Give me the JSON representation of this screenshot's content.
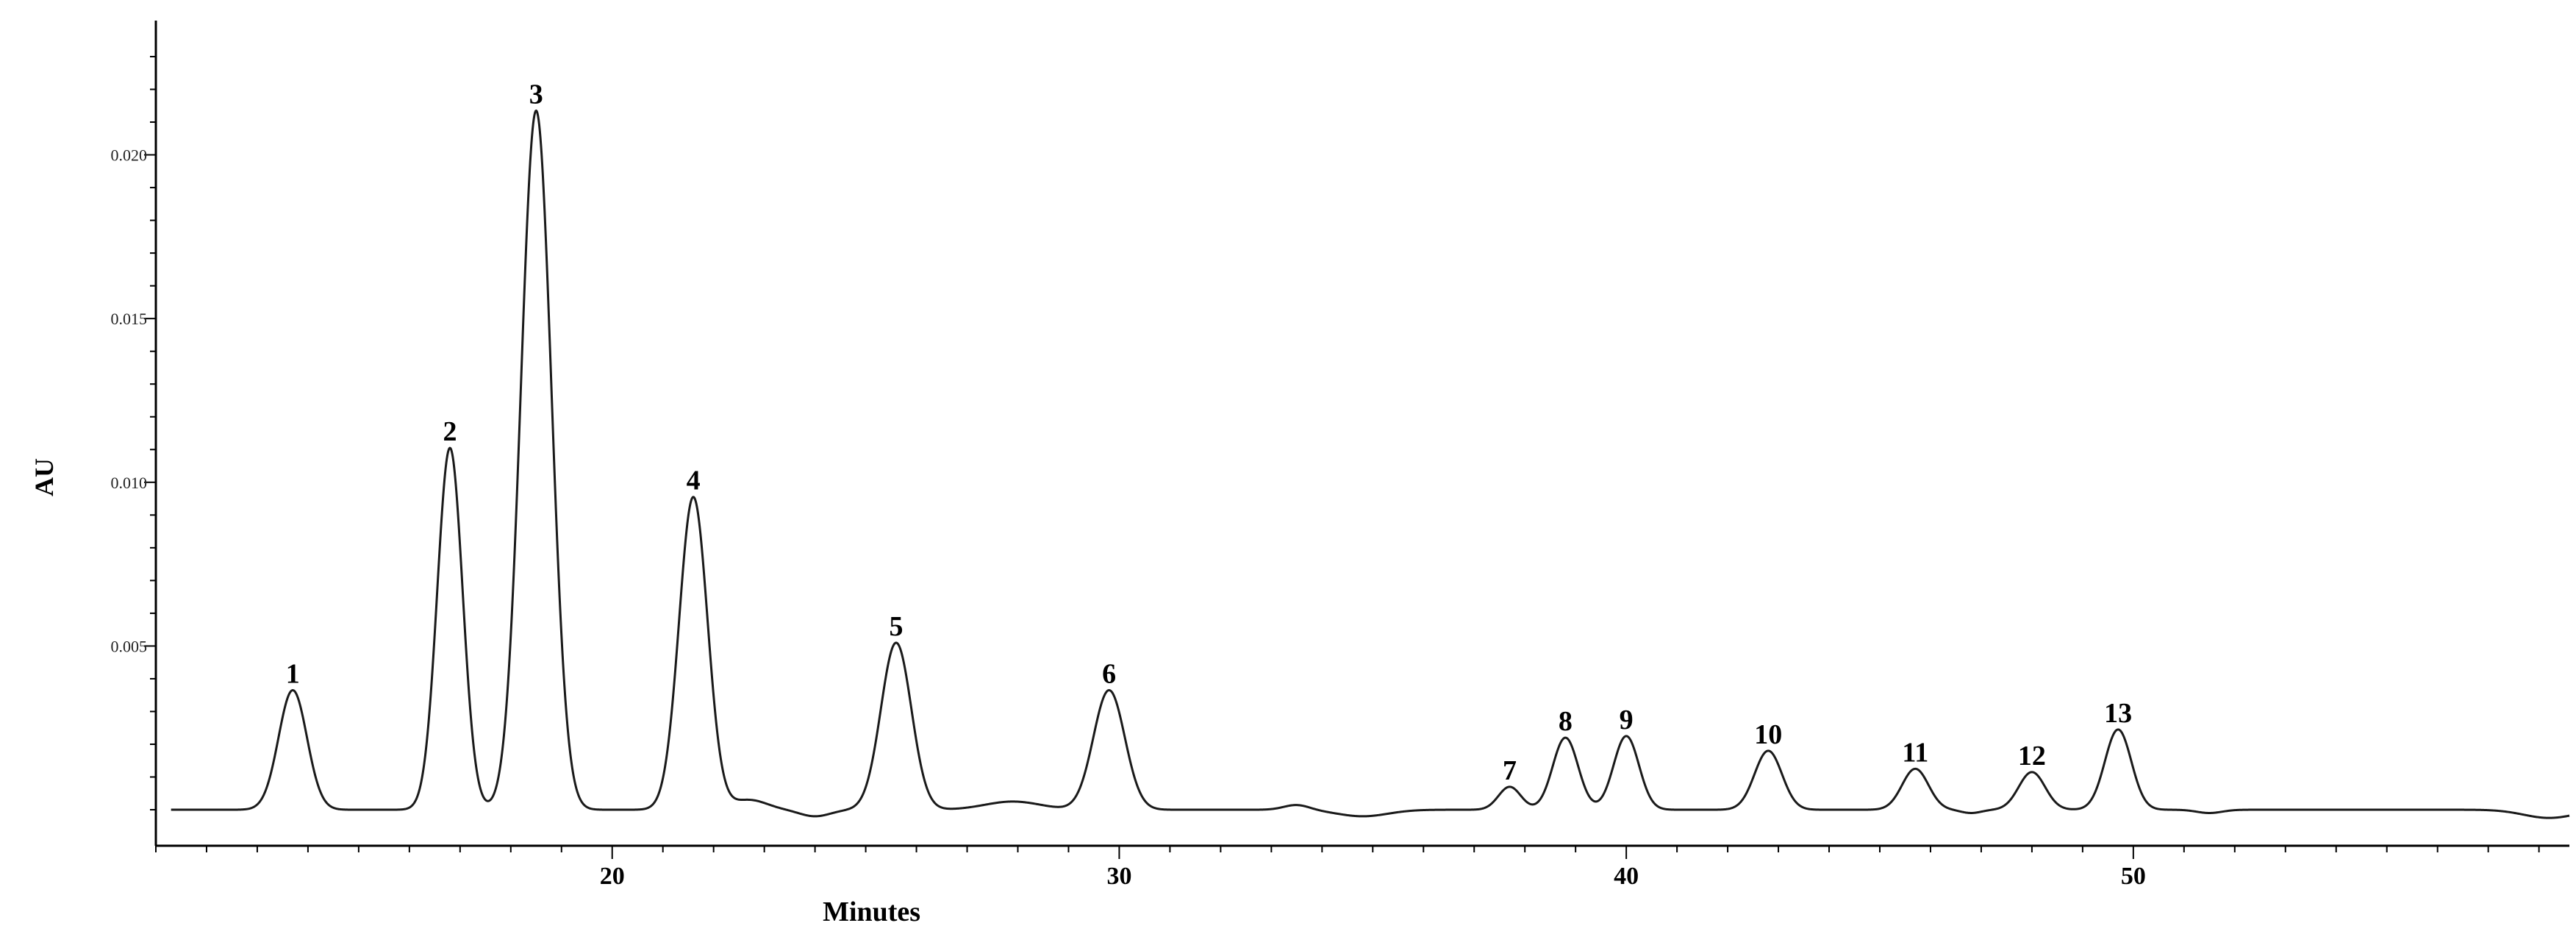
{
  "chart_data": {
    "type": "line",
    "xlabel": "Minutes",
    "ylabel": "AU",
    "xlim": [
      11.0,
      58.6
    ],
    "ylim": [
      -0.0011,
      0.0241
    ],
    "x_ticks": [
      20,
      30,
      40,
      50
    ],
    "x_tick_labels": [
      "20",
      "30",
      "40",
      "50"
    ],
    "y_ticks": [
      0.005,
      0.01,
      0.015,
      0.02
    ],
    "y_tick_labels": [
      "0.005",
      "0.010",
      "0.015",
      "0.020"
    ],
    "grid": false,
    "legend": "none",
    "baseline": 0.0,
    "line_color": "#1a1a1a",
    "peaks": [
      {
        "label": "1",
        "x": 13.7,
        "height": 0.00365,
        "width": 0.28
      },
      {
        "label": "2",
        "x": 16.8,
        "height": 0.01105,
        "width": 0.25
      },
      {
        "label": "3",
        "x": 18.5,
        "height": 0.02135,
        "width": 0.3
      },
      {
        "label": "4",
        "x": 21.6,
        "height": 0.00955,
        "width": 0.28
      },
      {
        "label": "5",
        "x": 25.6,
        "height": 0.0051,
        "width": 0.3
      },
      {
        "label": "6",
        "x": 29.8,
        "height": 0.00365,
        "width": 0.31
      },
      {
        "label": "7",
        "x": 37.7,
        "height": 0.0007,
        "width": 0.22
      },
      {
        "label": "8",
        "x": 38.8,
        "height": 0.0022,
        "width": 0.25
      },
      {
        "label": "9",
        "x": 40.0,
        "height": 0.00225,
        "width": 0.25
      },
      {
        "label": "10",
        "x": 42.8,
        "height": 0.0018,
        "width": 0.27
      },
      {
        "label": "11",
        "x": 45.7,
        "height": 0.00125,
        "width": 0.26
      },
      {
        "label": "12",
        "x": 48.0,
        "height": 0.00115,
        "width": 0.26
      },
      {
        "label": "13",
        "x": 49.7,
        "height": 0.00245,
        "width": 0.26
      }
    ],
    "minor_features": [
      {
        "x": 22.7,
        "height": 0.0003,
        "width": 0.35
      },
      {
        "x": 24.0,
        "height": -0.0002,
        "width": 0.3
      },
      {
        "x": 27.9,
        "height": 0.00025,
        "width": 0.55
      },
      {
        "x": 33.5,
        "height": 0.00015,
        "width": 0.25
      },
      {
        "x": 34.8,
        "height": -0.0002,
        "width": 0.5
      },
      {
        "x": 46.8,
        "height": -0.0001,
        "width": 0.2
      },
      {
        "x": 51.5,
        "height": -0.0001,
        "width": 0.25
      },
      {
        "x": 58.2,
        "height": -0.00025,
        "width": 0.5
      }
    ]
  }
}
